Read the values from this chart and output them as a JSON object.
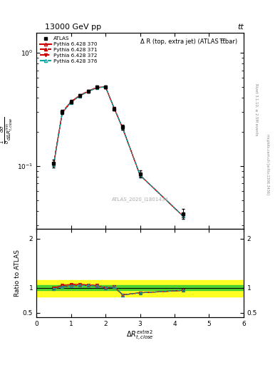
{
  "title_top": "13000 GeV pp",
  "title_top_right": "tt",
  "inner_title": "Δ R (top, extra jet) (ATLAS t̅t̅bar)",
  "watermark": "ATLAS_2020_I1801434",
  "rivet_label": "Rivet 3.1.10, ≥ 2.5M events",
  "mcplots_label": "mcplots.cern.ch [arXiv:1306.3436]",
  "ylabel_ratio": "Ratio to ATLAS",
  "xlim": [
    0,
    6
  ],
  "ylim_main": [
    0.028,
    1.5
  ],
  "ylim_ratio": [
    0.4,
    2.2
  ],
  "x_data": [
    0.5,
    0.75,
    1.0,
    1.25,
    1.5,
    1.75,
    2.0,
    2.25,
    2.5,
    3.0,
    4.25
  ],
  "atlas_y": [
    0.105,
    0.3,
    0.37,
    0.42,
    0.46,
    0.5,
    0.5,
    0.32,
    0.22,
    0.085,
    0.038
  ],
  "atlas_yerr": [
    0.008,
    0.012,
    0.012,
    0.014,
    0.014,
    0.014,
    0.014,
    0.012,
    0.01,
    0.006,
    0.004
  ],
  "py370_y": [
    0.103,
    0.295,
    0.365,
    0.415,
    0.455,
    0.49,
    0.5,
    0.325,
    0.215,
    0.083,
    0.036
  ],
  "py371_y": [
    0.105,
    0.3,
    0.37,
    0.42,
    0.46,
    0.495,
    0.5,
    0.325,
    0.215,
    0.083,
    0.036
  ],
  "py372_y": [
    0.105,
    0.3,
    0.37,
    0.42,
    0.46,
    0.495,
    0.5,
    0.325,
    0.215,
    0.083,
    0.036
  ],
  "py376_y": [
    0.103,
    0.295,
    0.365,
    0.415,
    0.455,
    0.49,
    0.5,
    0.325,
    0.215,
    0.083,
    0.036
  ],
  "ratio370": [
    0.98,
    1.02,
    1.04,
    1.05,
    1.05,
    1.04,
    1.0,
    1.02,
    0.86,
    0.9,
    0.95
  ],
  "ratio371": [
    1.0,
    1.05,
    1.07,
    1.07,
    1.06,
    1.05,
    1.0,
    1.02,
    0.86,
    0.9,
    0.95
  ],
  "ratio372": [
    1.0,
    1.05,
    1.07,
    1.07,
    1.06,
    1.05,
    1.0,
    1.02,
    0.86,
    0.9,
    0.95
  ],
  "ratio376": [
    0.98,
    1.02,
    1.04,
    1.05,
    1.05,
    1.04,
    1.0,
    1.02,
    0.86,
    0.9,
    0.95
  ],
  "green_band_lo": 0.95,
  "green_band_hi": 1.05,
  "yellow_band_lo": 0.82,
  "yellow_band_hi": 1.15,
  "color_370": "#cc0000",
  "color_376": "#00aaaa",
  "bg": "#ffffff"
}
